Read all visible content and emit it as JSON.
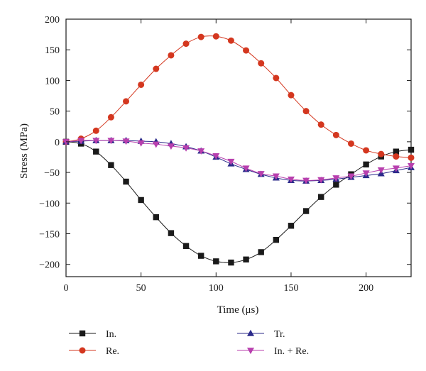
{
  "chart_data": {
    "type": "line",
    "xlabel": "Time (μs)",
    "ylabel": "Stress (MPa)",
    "xlim": [
      0,
      230
    ],
    "ylim": [
      -220,
      200
    ],
    "xticks": [
      0,
      50,
      100,
      150,
      200
    ],
    "yticks": [
      200,
      150,
      100,
      50,
      0,
      -50,
      -100,
      -150,
      -200
    ],
    "xtick_labels": [
      "0",
      "50",
      "100",
      "150",
      "200"
    ],
    "ytick_labels": [
      "200",
      "150",
      "100",
      "50",
      "0",
      "−50",
      "−100",
      "−150",
      "−200"
    ],
    "grid": false,
    "legend_position": "bottom",
    "series": [
      {
        "name": "In.",
        "marker": "square",
        "color": "#1a1a1a",
        "x": [
          0,
          10,
          20,
          30,
          40,
          50,
          60,
          70,
          80,
          90,
          100,
          110,
          120,
          130,
          140,
          150,
          160,
          170,
          180,
          190,
          200,
          210,
          220,
          230
        ],
        "y": [
          0,
          -3,
          -16,
          -38,
          -65,
          -95,
          -123,
          -149,
          -170,
          -186,
          -195,
          -197,
          -192,
          -180,
          -160,
          -137,
          -113,
          -90,
          -70,
          -53,
          -37,
          -24,
          -16,
          -13
        ]
      },
      {
        "name": "Re.",
        "marker": "circle",
        "color": "#d4371f",
        "x": [
          0,
          10,
          20,
          30,
          40,
          50,
          60,
          70,
          80,
          90,
          100,
          110,
          120,
          130,
          140,
          150,
          160,
          170,
          180,
          190,
          200,
          210,
          220,
          230
        ],
        "y": [
          0,
          5,
          18,
          40,
          66,
          93,
          119,
          141,
          160,
          171,
          172,
          165,
          149,
          128,
          104,
          76,
          50,
          28,
          11,
          -3,
          -14,
          -20,
          -24,
          -26
        ]
      },
      {
        "name": "Tr.",
        "marker": "triangle-up",
        "color": "#2b2a8a",
        "x": [
          0,
          10,
          20,
          30,
          40,
          50,
          60,
          70,
          80,
          90,
          100,
          110,
          120,
          130,
          140,
          150,
          160,
          170,
          180,
          190,
          200,
          210,
          220,
          230
        ],
        "y": [
          0,
          1,
          2,
          2,
          2,
          1,
          0,
          -3,
          -8,
          -15,
          -25,
          -36,
          -45,
          -53,
          -59,
          -63,
          -64,
          -63,
          -61,
          -58,
          -55,
          -52,
          -47,
          -42
        ]
      },
      {
        "name": "In. + Re.",
        "marker": "triangle-down",
        "color": "#b83fae",
        "x": [
          0,
          10,
          20,
          30,
          40,
          50,
          60,
          70,
          80,
          90,
          100,
          110,
          120,
          130,
          140,
          150,
          160,
          170,
          180,
          190,
          200,
          210,
          220,
          230
        ],
        "y": [
          0,
          2,
          2,
          2,
          1,
          -2,
          -4,
          -7,
          -10,
          -15,
          -23,
          -32,
          -43,
          -52,
          -56,
          -61,
          -63,
          -62,
          -59,
          -56,
          -51,
          -46,
          -43,
          -39
        ]
      }
    ]
  }
}
